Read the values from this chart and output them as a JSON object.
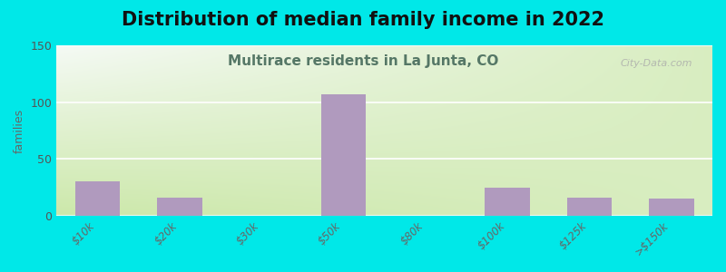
{
  "title": "Distribution of median family income in 2022",
  "subtitle": "Multirace residents in La Junta, CO",
  "categories": [
    "$10k",
    "$20k",
    "$30k",
    "$50k",
    "$80k",
    "$100k",
    "$125k",
    ">$150k"
  ],
  "values": [
    30,
    16,
    0,
    107,
    0,
    25,
    16,
    15
  ],
  "bar_color": "#b09abe",
  "background_outer": "#00e8e8",
  "title_fontsize": 15,
  "subtitle_fontsize": 11,
  "title_color": "#111111",
  "subtitle_color": "#557766",
  "ylabel": "families",
  "ylim": [
    0,
    150
  ],
  "yticks": [
    0,
    50,
    100,
    150
  ],
  "watermark": "City-Data.com",
  "grad_bottom_left": "#cce8aa",
  "grad_top_right": "#f0f8f4",
  "grid_color": "#dddddd"
}
